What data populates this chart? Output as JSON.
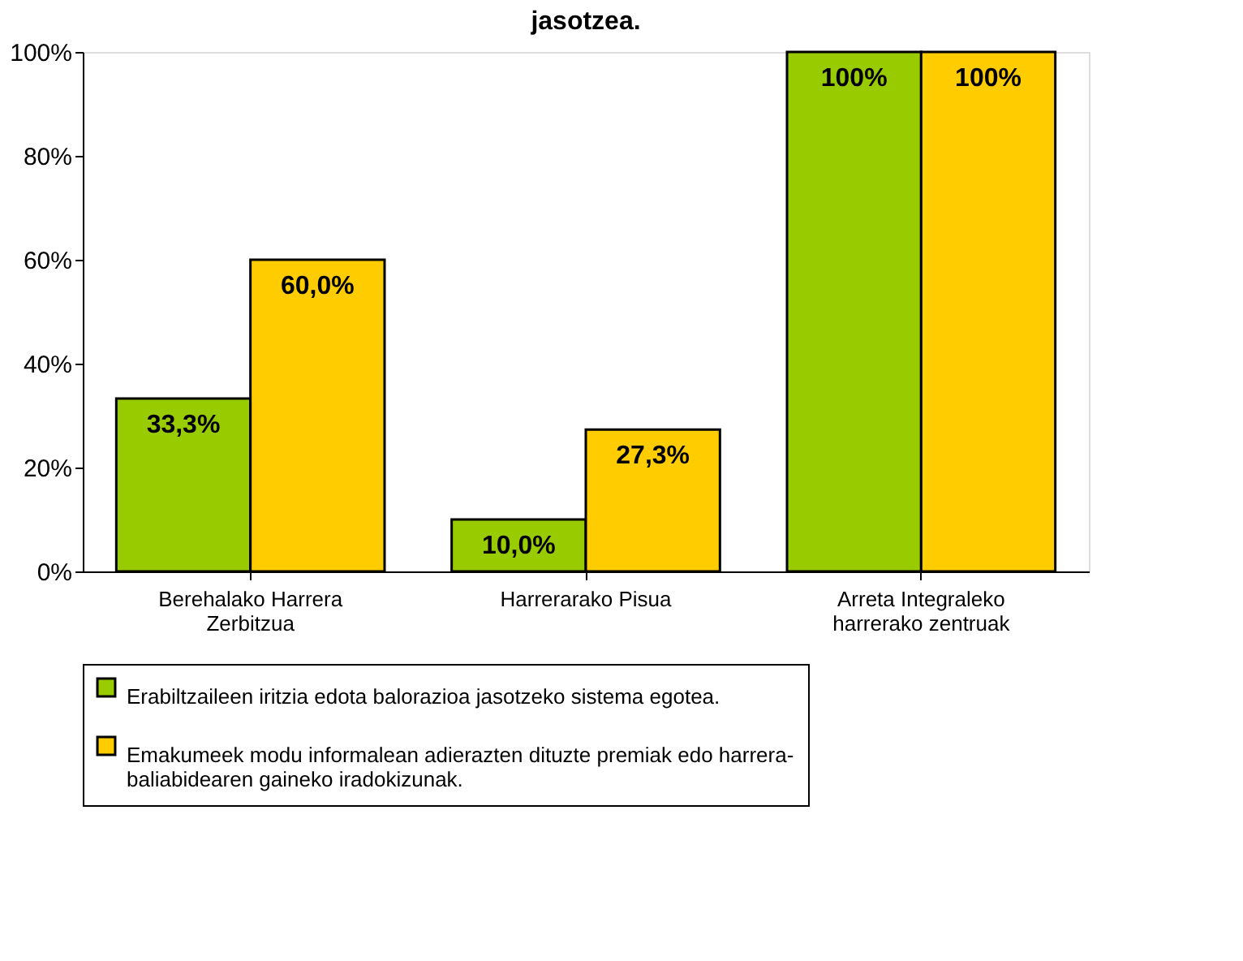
{
  "chart_data": {
    "type": "bar",
    "title": "jasotzea.",
    "categories": [
      "Berehalako Harrera Zerbitzua",
      "Harrerarako Pisua",
      "Arreta Integraleko harrerako zentruak"
    ],
    "series": [
      {
        "name": "Erabiltzaileen iritzia edota balorazioa jasotzeko sistema egotea.",
        "color": "#99cc00",
        "values": [
          33.3,
          10.0,
          100
        ],
        "value_labels": [
          "33,3%",
          "10,0%",
          "100%"
        ]
      },
      {
        "name": "Emakumeek modu informalean adierazten dituzte premiak edo harrera-baliabidearen gaineko iradokizunak.",
        "color": "#ffcc00",
        "values": [
          60.0,
          27.3,
          100
        ],
        "value_labels": [
          "60,0%",
          "27,3%",
          "100%"
        ]
      }
    ],
    "ylim": [
      0,
      100
    ],
    "yticks": [
      {
        "value": 0,
        "label": "0%"
      },
      {
        "value": 20,
        "label": "20%"
      },
      {
        "value": 40,
        "label": "40%"
      },
      {
        "value": 60,
        "label": "60%"
      },
      {
        "value": 80,
        "label": "80%"
      },
      {
        "value": 100,
        "label": "100%"
      }
    ],
    "grid": false,
    "legend": "bottom"
  }
}
